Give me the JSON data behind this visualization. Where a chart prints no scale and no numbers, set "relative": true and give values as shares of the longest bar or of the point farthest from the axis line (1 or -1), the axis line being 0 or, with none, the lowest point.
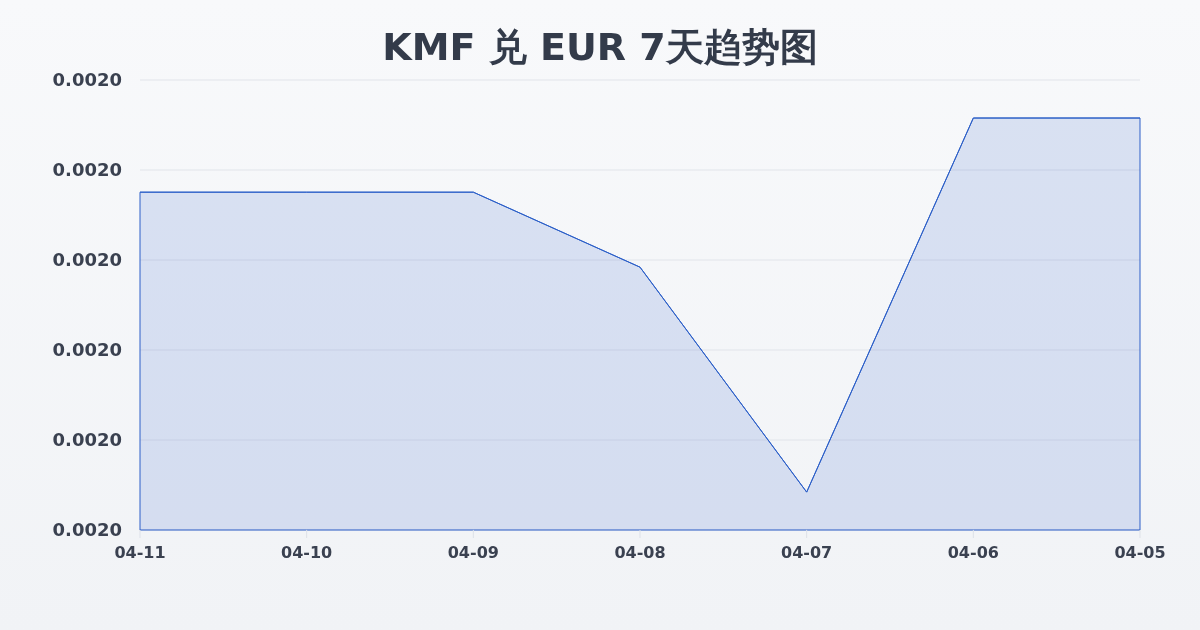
{
  "chart_data": {
    "type": "area",
    "title": "KMF 兑 EUR 7天趋势图",
    "categories": [
      "04-11",
      "04-10",
      "04-09",
      "04-08",
      "04-07",
      "04-06",
      "04-05"
    ],
    "series": [
      {
        "color": "#2c5fc8",
        "values": [
          0.82,
          0.82,
          0.82,
          0.638,
          0.092,
          1,
          1
        ]
      }
    ],
    "relative": true,
    "annotations": [
      "0.0020",
      "0.0020",
      "0.0020",
      "0.0020",
      "0.0020",
      "0.0020"
    ],
    "grid": "y"
  }
}
